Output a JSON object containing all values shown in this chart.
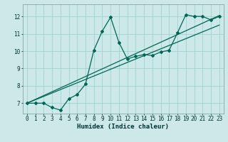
{
  "xlabel": "Humidex (Indice chaleur)",
  "background_color": "#cce8e8",
  "grid_color": "#99cccc",
  "line_color": "#006655",
  "xlim": [
    -0.5,
    23.5
  ],
  "ylim": [
    6.4,
    12.7
  ],
  "xticks": [
    0,
    1,
    2,
    3,
    4,
    5,
    6,
    7,
    8,
    9,
    10,
    11,
    12,
    13,
    14,
    15,
    16,
    17,
    18,
    19,
    20,
    21,
    22,
    23
  ],
  "yticks": [
    7,
    8,
    9,
    10,
    11,
    12
  ],
  "data_x": [
    0,
    1,
    2,
    3,
    4,
    5,
    6,
    7,
    8,
    9,
    10,
    11,
    12,
    13,
    14,
    15,
    16,
    17,
    18,
    19,
    20,
    21,
    22,
    23
  ],
  "data_y": [
    7.0,
    7.0,
    7.0,
    6.75,
    6.6,
    7.25,
    7.5,
    8.1,
    10.05,
    11.15,
    11.95,
    10.5,
    9.55,
    9.7,
    9.8,
    9.75,
    9.95,
    10.05,
    11.05,
    12.1,
    12.0,
    12.0,
    11.8,
    12.0
  ],
  "line1_x": [
    0,
    23
  ],
  "line1_y": [
    7.0,
    12.05
  ],
  "line2_x": [
    0,
    23
  ],
  "line2_y": [
    7.0,
    11.5
  ],
  "figsize": [
    3.2,
    2.0
  ],
  "dpi": 100,
  "tick_fontsize": 5.5,
  "label_fontsize": 6.5
}
